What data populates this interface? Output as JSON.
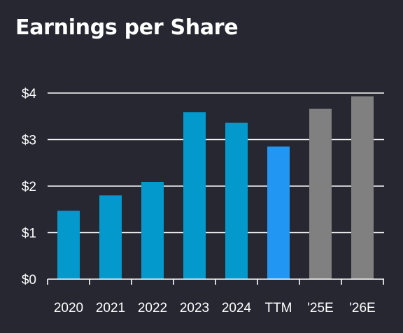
{
  "chart_data": {
    "type": "bar",
    "title": "Earnings per Share",
    "xlabel": "",
    "ylabel": "",
    "categories": [
      "2020",
      "2021",
      "2022",
      "2023",
      "2024",
      "TTM",
      "'25E",
      "'26E"
    ],
    "values": [
      1.47,
      1.8,
      2.09,
      3.59,
      3.36,
      2.85,
      3.66,
      3.93
    ],
    "bar_colors": [
      "#0499cc",
      "#0499cc",
      "#0499cc",
      "#0499cc",
      "#0499cc",
      "#2196f3",
      "#808080",
      "#808080"
    ],
    "ylim": [
      0,
      4
    ],
    "yticks": [
      0,
      1,
      2,
      3,
      4
    ],
    "ytick_labels": [
      "$0",
      "$1",
      "$2",
      "$3",
      "$4"
    ],
    "grid": true,
    "legend": "none"
  },
  "colors": {
    "background": "#262731",
    "text": "#ffffff",
    "grid": "#ffffff",
    "actual": "#0499cc",
    "ttm": "#2196f3",
    "estimate": "#808080"
  }
}
